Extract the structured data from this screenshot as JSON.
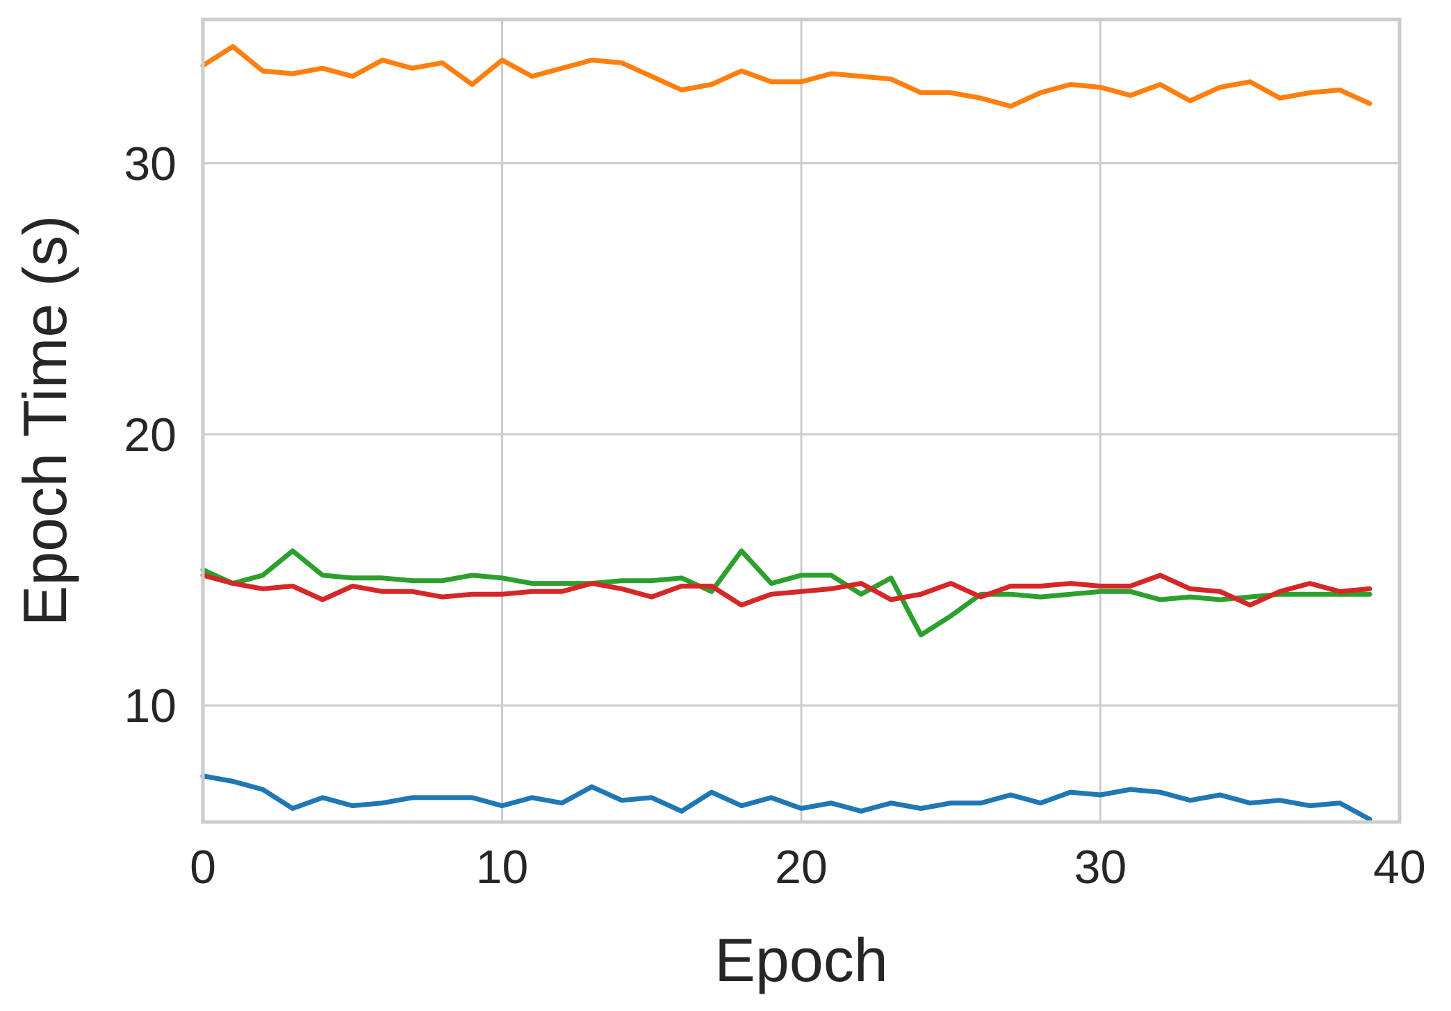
{
  "chart_data": {
    "type": "line",
    "title": "",
    "xlabel": "Epoch",
    "ylabel": "Epoch Time (s)",
    "xlim": [
      0,
      40
    ],
    "ylim": [
      5.7,
      35.3
    ],
    "xticks": [
      0,
      10,
      20,
      30,
      40
    ],
    "yticks": [
      10,
      20,
      30
    ],
    "grid": true,
    "x": [
      0,
      1,
      2,
      3,
      4,
      5,
      6,
      7,
      8,
      9,
      10,
      11,
      12,
      13,
      14,
      15,
      16,
      17,
      18,
      19,
      20,
      21,
      22,
      23,
      24,
      25,
      26,
      27,
      28,
      29,
      30,
      31,
      32,
      33,
      34,
      35,
      36,
      37,
      38,
      39
    ],
    "series": [
      {
        "color": "#ff7f0e",
        "values": [
          33.6,
          34.3,
          33.4,
          33.3,
          33.5,
          33.2,
          33.8,
          33.5,
          33.7,
          32.9,
          33.8,
          33.2,
          33.5,
          33.8,
          33.7,
          33.2,
          32.7,
          32.9,
          33.4,
          33.0,
          33.0,
          33.3,
          33.2,
          33.1,
          32.6,
          32.6,
          32.4,
          32.1,
          32.6,
          32.9,
          32.8,
          32.5,
          32.9,
          32.3,
          32.8,
          33.0,
          32.4,
          32.6,
          32.7,
          32.2
        ]
      },
      {
        "color": "#2ca02c",
        "values": [
          15.0,
          14.5,
          14.8,
          15.7,
          14.8,
          14.7,
          14.7,
          14.6,
          14.6,
          14.8,
          14.7,
          14.5,
          14.5,
          14.5,
          14.6,
          14.6,
          14.7,
          14.2,
          15.7,
          14.5,
          14.8,
          14.8,
          14.1,
          14.7,
          12.6,
          13.3,
          14.1,
          14.1,
          14.0,
          14.1,
          14.2,
          14.2,
          13.9,
          14.0,
          13.9,
          14.0,
          14.1,
          14.1,
          14.1,
          14.1
        ]
      },
      {
        "color": "#d62728",
        "values": [
          14.8,
          14.5,
          14.3,
          14.4,
          13.9,
          14.4,
          14.2,
          14.2,
          14.0,
          14.1,
          14.1,
          14.2,
          14.2,
          14.5,
          14.3,
          14.0,
          14.4,
          14.4,
          13.7,
          14.1,
          14.2,
          14.3,
          14.5,
          13.9,
          14.1,
          14.5,
          14.0,
          14.4,
          14.4,
          14.5,
          14.4,
          14.4,
          14.8,
          14.3,
          14.2,
          13.7,
          14.2,
          14.5,
          14.2,
          14.3
        ]
      },
      {
        "color": "#1f77b4",
        "values": [
          7.4,
          7.2,
          6.9,
          6.2,
          6.6,
          6.3,
          6.4,
          6.6,
          6.6,
          6.6,
          6.3,
          6.6,
          6.4,
          7.0,
          6.5,
          6.6,
          6.1,
          6.8,
          6.3,
          6.6,
          6.2,
          6.4,
          6.1,
          6.4,
          6.2,
          6.4,
          6.4,
          6.7,
          6.4,
          6.8,
          6.7,
          6.9,
          6.8,
          6.5,
          6.7,
          6.4,
          6.5,
          6.3,
          6.4,
          5.8
        ]
      }
    ]
  }
}
